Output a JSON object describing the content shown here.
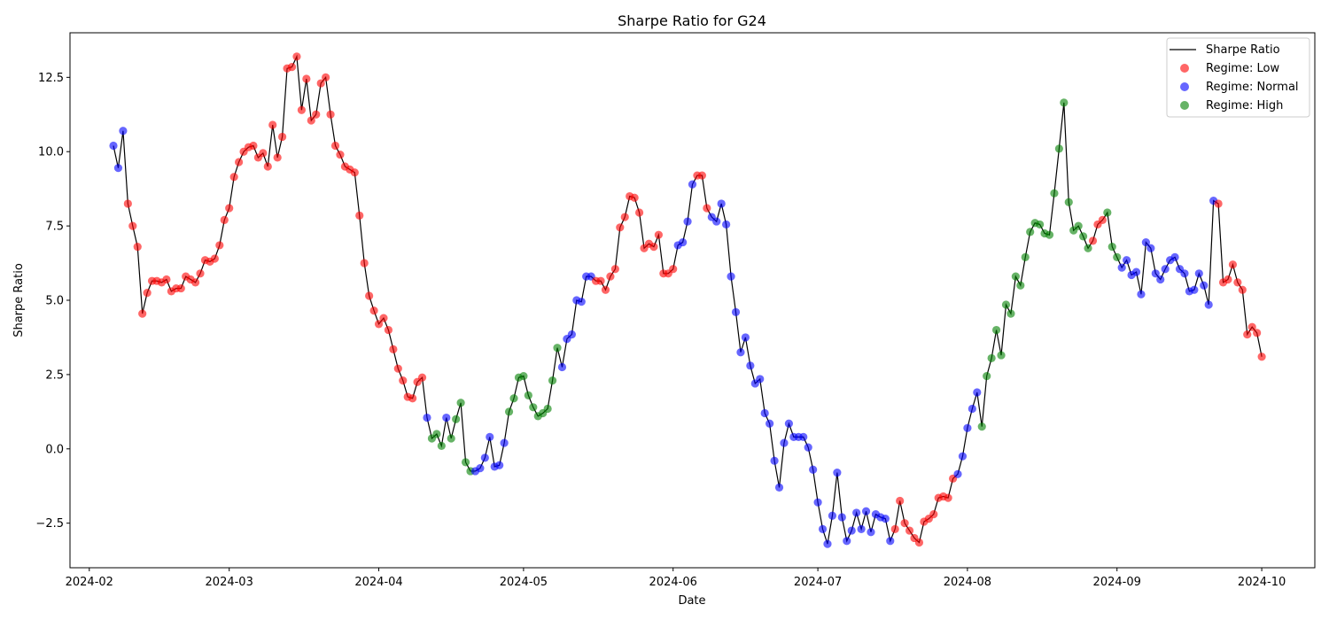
{
  "chart_data": {
    "type": "line",
    "title": "Sharpe Ratio for G24",
    "xlabel": "Date",
    "ylabel": "Sharpe Ratio",
    "x_range": [
      "2024-01-28",
      "2024-10-12"
    ],
    "ylim": [
      -4.0,
      14.0
    ],
    "x_ticks": [
      "2024-02-01",
      "2024-03-01",
      "2024-04-01",
      "2024-05-01",
      "2024-06-01",
      "2024-07-01",
      "2024-08-01",
      "2024-09-01",
      "2024-10-01"
    ],
    "x_tick_labels": [
      "2024-02",
      "2024-03",
      "2024-04",
      "2024-05",
      "2024-06",
      "2024-07",
      "2024-08",
      "2024-09",
      "2024-10"
    ],
    "y_ticks": [
      -2.5,
      0.0,
      2.5,
      5.0,
      7.5,
      10.0,
      12.5
    ],
    "y_tick_labels": [
      "−2.5",
      "0.0",
      "2.5",
      "5.0",
      "7.5",
      "10.0",
      "12.5"
    ],
    "grid": false,
    "legend_position": "top-right",
    "line_series": {
      "name": "Sharpe Ratio",
      "color": "#000000"
    },
    "regimes": [
      {
        "name": "Regime: Low",
        "code": "L",
        "color": "#ff0000"
      },
      {
        "name": "Regime: Normal",
        "code": "N",
        "color": "#0000ff"
      },
      {
        "name": "Regime: High",
        "code": "H",
        "color": "#008000"
      }
    ],
    "start_date": "2024-02-06",
    "values": [
      10.2,
      9.45,
      10.7,
      8.25,
      7.5,
      6.8,
      4.55,
      5.25,
      5.65,
      5.65,
      5.6,
      5.7,
      5.3,
      5.4,
      5.4,
      5.8,
      5.7,
      5.6,
      5.9,
      6.35,
      6.3,
      6.4,
      6.85,
      7.7,
      8.1,
      9.15,
      9.65,
      10.0,
      10.15,
      10.2,
      9.8,
      9.95,
      9.5,
      10.9,
      9.8,
      10.5,
      12.8,
      12.85,
      13.2,
      11.4,
      12.45,
      11.05,
      11.25,
      12.3,
      12.5,
      11.25,
      10.2,
      9.9,
      9.5,
      9.4,
      9.3,
      7.85,
      6.25,
      5.15,
      4.65,
      4.2,
      4.4,
      4.0,
      3.35,
      2.7,
      2.3,
      1.75,
      1.7,
      2.25,
      2.4,
      1.05,
      0.35,
      0.5,
      0.1,
      1.05,
      0.35,
      1.0,
      1.55,
      -0.45,
      -0.75,
      -0.75,
      -0.65,
      -0.3,
      0.4,
      -0.6,
      -0.55,
      0.2,
      1.25,
      1.7,
      2.4,
      2.45,
      1.8,
      1.4,
      1.1,
      1.2,
      1.35,
      2.3,
      3.4,
      2.75,
      3.7,
      3.85,
      5.0,
      4.95,
      5.8,
      5.8,
      5.65,
      5.65,
      5.35,
      5.8,
      6.05,
      7.45,
      7.8,
      8.5,
      8.45,
      7.95,
      6.75,
      6.9,
      6.8,
      7.2,
      5.9,
      5.9,
      6.05,
      6.85,
      6.95,
      7.65,
      8.9,
      9.2,
      9.2,
      8.1,
      7.8,
      7.65,
      8.25,
      7.55,
      5.8,
      4.6,
      3.25,
      3.75,
      2.8,
      2.2,
      2.35,
      1.2,
      0.85,
      -0.4,
      -1.3,
      0.2,
      0.85,
      0.4,
      0.4,
      0.4,
      0.05,
      -0.7,
      -1.8,
      -2.7,
      -3.2,
      -2.25,
      -0.8,
      -2.3,
      -3.1,
      -2.75,
      -2.15,
      -2.7,
      -2.1,
      -2.8,
      -2.2,
      -2.3,
      -2.35,
      -3.1,
      -2.7,
      -1.75,
      -2.5,
      -2.75,
      -3.0,
      -3.15,
      -2.45,
      -2.35,
      -2.2,
      -1.65,
      -1.6,
      -1.65,
      -1.0,
      -0.85,
      -0.25,
      0.7,
      1.35,
      1.9,
      0.75,
      2.45,
      3.05,
      4.0,
      3.15,
      4.85,
      4.55,
      5.8,
      5.5,
      6.45,
      7.3,
      7.6,
      7.55,
      7.25,
      7.2,
      8.6,
      10.1,
      11.65,
      8.3,
      7.35,
      7.5,
      7.15,
      6.75,
      7.0,
      7.55,
      7.7,
      7.95,
      6.8,
      6.45,
      6.1,
      6.35,
      5.85,
      5.95,
      5.2,
      6.95,
      6.75,
      5.9,
      5.7,
      6.05,
      6.35,
      6.45,
      6.05,
      5.9,
      5.3,
      5.35,
      5.9,
      5.5,
      4.85,
      8.35,
      8.25,
      5.6,
      5.7,
      6.2,
      5.6,
      5.35,
      3.85,
      4.1,
      3.9,
      3.1
    ],
    "regime_codes": "NNNLLLLLLLLLLLLLLLLLLLLLLLLLLLLLLLLLLLLLLLLLLLLLLLLLLLLLLLLLLLLLLNHHHNHHHHHNNNNNNNHHHHHHHHHHHNNNNNNNLLLLLLLLLLLLLLLLLNNNNLLLNNNNNNNNNNNNNNNNNNNNNNNNNNNNNNNNNNNNNNLLLLLLLLLLLLLNNNNNHHHHHHHHHHHHHHHHHHHHHHHLLLHHHNNNNNNNNNNNNNNNNNNNNLLLLLLLLLLN"
  }
}
